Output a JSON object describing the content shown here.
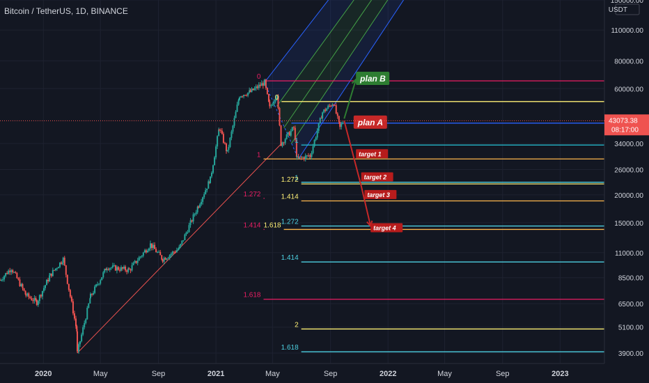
{
  "chart_data": {
    "type": "candlestick",
    "title": "Bitcoin / TetherUS, 1D, BINANCE",
    "currency": "USDT",
    "y_scale": "log",
    "ylim": [
      3500,
      150000
    ],
    "xlim": [
      "2019-10-01",
      "2023-04-05"
    ],
    "price_ticks": [
      150000,
      110000,
      80000,
      60000,
      34000,
      26000,
      20000,
      15000,
      11000,
      8500,
      6500,
      5100,
      3900
    ],
    "time_ticks": [
      {
        "label": "2020",
        "date": "2020-01-01",
        "bold": true
      },
      {
        "label": "May",
        "date": "2020-05-01",
        "bold": false
      },
      {
        "label": "Sep",
        "date": "2020-09-01",
        "bold": false
      },
      {
        "label": "2021",
        "date": "2021-01-01",
        "bold": true
      },
      {
        "label": "May",
        "date": "2021-05-01",
        "bold": false
      },
      {
        "label": "Sep",
        "date": "2021-09-01",
        "bold": false
      },
      {
        "label": "2022",
        "date": "2022-01-01",
        "bold": true
      },
      {
        "label": "May",
        "date": "2022-05-01",
        "bold": false
      },
      {
        "label": "Sep",
        "date": "2022-09-01",
        "bold": false
      },
      {
        "label": "2023",
        "date": "2023-01-01",
        "bold": true
      }
    ],
    "current_price": "43073.38",
    "countdown": "08:17:00",
    "price_path": [
      [
        "2019-10-01",
        8300
      ],
      [
        "2019-10-25",
        9400
      ],
      [
        "2019-11-25",
        7100
      ],
      [
        "2019-12-18",
        6600
      ],
      [
        "2020-01-15",
        8700
      ],
      [
        "2020-02-12",
        10300
      ],
      [
        "2020-03-12",
        4900
      ],
      [
        "2020-03-13",
        3900
      ],
      [
        "2020-04-10",
        7000
      ],
      [
        "2020-05-15",
        9500
      ],
      [
        "2020-07-01",
        9200
      ],
      [
        "2020-08-15",
        12000
      ],
      [
        "2020-09-10",
        10300
      ],
      [
        "2020-10-15",
        11500
      ],
      [
        "2020-11-25",
        18000
      ],
      [
        "2020-12-20",
        23500
      ],
      [
        "2021-01-08",
        40000
      ],
      [
        "2021-01-25",
        31000
      ],
      [
        "2021-02-20",
        56000
      ],
      [
        "2021-03-15",
        58000
      ],
      [
        "2021-04-14",
        64000
      ],
      [
        "2021-04-25",
        49000
      ],
      [
        "2021-05-10",
        57000
      ],
      [
        "2021-05-19",
        34000
      ],
      [
        "2021-06-15",
        40000
      ],
      [
        "2021-06-22",
        29000
      ],
      [
        "2021-07-20",
        30000
      ],
      [
        "2021-08-15",
        47000
      ],
      [
        "2021-09-07",
        52000
      ],
      [
        "2021-09-21",
        40000
      ],
      [
        "2021-09-28",
        43073
      ]
    ],
    "fib_levels": [
      {
        "label": "0",
        "price": 65000,
        "start": "2021-04-12",
        "end": "2023-04-05",
        "color": "#e91e63",
        "label_color": "#e91e63"
      },
      {
        "label": "0",
        "price": 52500,
        "start": "2021-05-20",
        "end": "2023-04-05",
        "color": "#fff176",
        "label_color": "#fff176"
      },
      {
        "label": "",
        "price": 42000,
        "start": "2021-06-10",
        "end": "2023-04-05",
        "color": "#2962ff",
        "label_color": "#2962ff"
      },
      {
        "label": "1",
        "price": 33500,
        "start": "2021-07-01",
        "end": "2023-04-05",
        "color": "#26c6da",
        "label_color": "#26c6da"
      },
      {
        "label": "1",
        "price": 29000,
        "start": "2021-04-12",
        "end": "2023-04-05",
        "color": "#ffb74d",
        "label_color": "#e91e63"
      },
      {
        "label": "1",
        "price": 22800,
        "start": "2021-07-01",
        "end": "2023-04-05",
        "color": "#4dd0e1",
        "label_color": "#4dd0e1"
      },
      {
        "label": "1.272",
        "price": 22400,
        "start": "2021-07-01",
        "end": "2023-04-05",
        "color": "#fff176",
        "label_color": "#fff176"
      },
      {
        "label": "1.414",
        "price": 18800,
        "start": "2021-07-01",
        "end": "2023-04-05",
        "color": "#ffb74d",
        "label_color": "#fff176"
      },
      {
        "label": "1.272",
        "price": 19300,
        "start": "2021-04-12",
        "end": "2021-04-14",
        "color": "#e91e63",
        "label_color": "#e91e63"
      },
      {
        "label": "1.272",
        "price": 14500,
        "start": "2021-07-01",
        "end": "2023-04-05",
        "color": "#4dd0e1",
        "label_color": "#4dd0e1"
      },
      {
        "label": "1.618",
        "price": 14000,
        "start": "2021-05-25",
        "end": "2023-04-05",
        "color": "#ffb74d",
        "label_color": "#fff176"
      },
      {
        "label": "1.414",
        "price": 14000,
        "start": "2021-04-12",
        "end": "2021-04-14",
        "color": "#e91e63",
        "label_color": "#e91e63"
      },
      {
        "label": "1.414",
        "price": 10000,
        "start": "2021-07-01",
        "end": "2023-04-05",
        "color": "#4dd0e1",
        "label_color": "#4dd0e1"
      },
      {
        "label": "1.618",
        "price": 6800,
        "start": "2021-04-12",
        "end": "2023-04-05",
        "color": "#e91e63",
        "label_color": "#e91e63"
      },
      {
        "label": "2",
        "price": 5000,
        "start": "2021-07-01",
        "end": "2023-04-05",
        "color": "#fff176",
        "label_color": "#fff176"
      },
      {
        "label": "1.618",
        "price": 3950,
        "start": "2021-07-01",
        "end": "2023-04-05",
        "color": "#4dd0e1",
        "label_color": "#4dd0e1"
      }
    ],
    "trendline": {
      "from": [
        "2020-03-13",
        3900
      ],
      "to": [
        "2021-05-20",
        34000
      ],
      "color": "#ef5350"
    },
    "pitchfork": {
      "color_outer": "#2962ff",
      "color_inner": "#43a047",
      "lines": [
        {
          "from": [
            "2021-04-14",
            64000
          ],
          "to": [
            "2022-04-05",
            600000
          ]
        },
        {
          "from": [
            "2021-05-10",
            50000
          ],
          "to": [
            "2022-05-15",
            600000
          ]
        },
        {
          "from": [
            "2021-05-25",
            40000
          ],
          "to": [
            "2022-06-10",
            600000
          ]
        },
        {
          "from": [
            "2021-06-10",
            34000
          ],
          "to": [
            "2022-07-10",
            600000
          ]
        },
        {
          "from": [
            "2021-06-25",
            29000
          ],
          "to": [
            "2022-08-10",
            600000
          ]
        }
      ]
    },
    "plans": [
      {
        "label": "plan B",
        "color": "#2e7d32",
        "at": [
          "2021-10-25",
          66000
        ],
        "path": [
          [
            "2021-09-30",
            44000
          ],
          [
            "2021-10-25",
            66000
          ]
        ]
      },
      {
        "label": "plan A",
        "color": "#c62828",
        "at": [
          "2021-10-20",
          42000
        ],
        "path": [
          [
            "2021-09-30",
            43000
          ],
          [
            "2021-11-05",
            22000
          ],
          [
            "2021-11-25",
            14500
          ]
        ]
      }
    ],
    "targets": [
      {
        "label": "target 1",
        "date": "2021-10-25",
        "price": 30500
      },
      {
        "label": "target 2",
        "date": "2021-11-05",
        "price": 24000
      },
      {
        "label": "target 3",
        "date": "2021-11-12",
        "price": 20000
      },
      {
        "label": "target 4",
        "date": "2021-11-25",
        "price": 14200
      }
    ]
  }
}
